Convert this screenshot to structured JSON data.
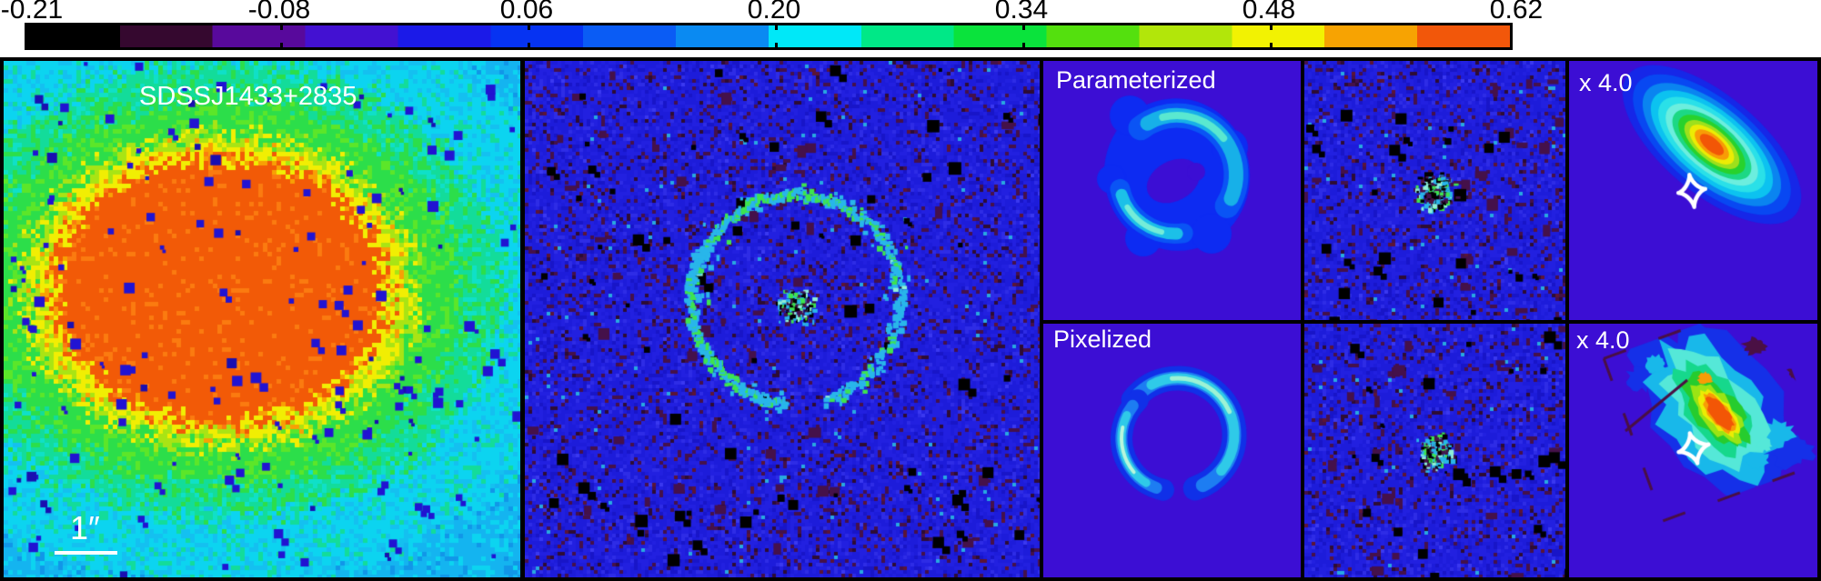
{
  "figure": {
    "colorbar": {
      "labels": [
        "-0.21",
        "-0.08",
        "0.06",
        "0.20",
        "0.34",
        "0.48",
        "0.62"
      ],
      "segments": [
        "#000000",
        "#35082f",
        "#58099c",
        "#4311d2",
        "#1b1ae8",
        "#0633f2",
        "#0a5cf5",
        "#0a8af2",
        "#00e8f8",
        "#00e887",
        "#0ae33c",
        "#54e00e",
        "#b2e60a",
        "#f2f202",
        "#f7a302",
        "#f2570a"
      ]
    },
    "panels": {
      "observed": {
        "title": "SDSSJ1433+2835",
        "scalebar_label": "1″"
      },
      "parameterized": {
        "label": "Parameterized"
      },
      "pixelized": {
        "label": "Pixelized"
      },
      "source_parameterized": {
        "zoom_label": "x 4.0"
      },
      "source_pixelized": {
        "zoom_label": "x 4.0"
      }
    },
    "palette": {
      "violet_bg": "#3c0ed4",
      "noise_base": "#1d1cda",
      "noise_blue_light": "#2e2ce6",
      "noise_blue_dark": "#1815c8",
      "maroon_speckle": "#45114a",
      "dark_speckle": "#2e0c34",
      "black": "#000000",
      "white": "#ffffff",
      "cyan_arc": "#29b6ea",
      "green_arc": "#3ee44f",
      "pale_arc": "#8ff0d8",
      "model_blob_blue": "#0d2bf2",
      "galaxy_zones": [
        "#f25a07",
        "#fb7b10",
        "#f8a004",
        "#f1ee03",
        "#a9e414",
        "#2cde4a",
        "#5ce629",
        "#13dc9a",
        "#0fe0c8",
        "#0cd4f0",
        "#14c0f0",
        "#14b4f0",
        "#1196e8",
        "#1478e0",
        "#2113d2"
      ],
      "source_contours": [
        "#1627e8",
        "#0848f2",
        "#0a84f0",
        "#0cc2f0",
        "#2ae0e8",
        "#6ceede",
        "#1cd884",
        "#28d22c",
        "#9ee01c",
        "#ecec04",
        "#f89c06",
        "#f25606"
      ],
      "pix_source_layers": [
        "#1530e8",
        "#18b8ea",
        "#55e8d8",
        "#16d88c",
        "#26cc2e",
        "#9ce414",
        "#ecec04",
        "#f89c06",
        "#f25606"
      ],
      "maroon_streak": "#4a1044"
    }
  }
}
